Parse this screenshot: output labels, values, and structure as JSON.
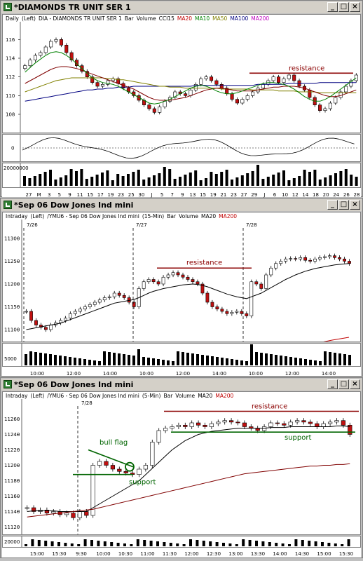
{
  "windows": [
    {
      "title": "*DIAMONDS TR UNIT SER 1",
      "header": [
        "Daily",
        "(Left)",
        "DIA - DIAMONDS TR UNIT SER 1",
        "Bar",
        "Volume",
        "CCI15"
      ],
      "header_colored": [
        {
          "text": "MA20",
          "color": "#c00000"
        },
        {
          "text": "MA10",
          "color": "#008000"
        },
        {
          "text": "MA50",
          "color": "#808000"
        },
        {
          "text": "MA100",
          "color": "#000080"
        },
        {
          "text": "MA200",
          "color": "#c000c0"
        }
      ],
      "price_ticks": [
        "116",
        "114",
        "112",
        "110",
        "108"
      ],
      "x_ticks": [
        "27",
        "M",
        "3",
        "5",
        "9",
        "11",
        "15",
        "17",
        "19",
        "23",
        "25",
        "30",
        "J",
        "5",
        "7",
        "9",
        "13",
        "15",
        "19",
        "21",
        "23",
        "27",
        "29",
        "J",
        "6",
        "10",
        "12",
        "14",
        "18",
        "20",
        "24",
        "26",
        "28"
      ],
      "cci_tick": "0",
      "volume_tick": "20000000",
      "annotation": "resistance"
    },
    {
      "title": "*Sep 06  Dow Jones Ind mini",
      "header": [
        "Intraday",
        "(Left)",
        "/YMU6 - Sep 06  Dow Jones Ind mini",
        "(15-Min)",
        "Bar",
        "Volume",
        "MA20"
      ],
      "header_colored": [
        {
          "text": "MA200",
          "color": "#c00000"
        }
      ],
      "date_marks": [
        "7/26",
        "7/27",
        "7/28"
      ],
      "price_ticks": [
        "11300",
        "11250",
        "11200",
        "11150",
        "11100"
      ],
      "volume_tick": "5000",
      "x_ticks": [
        "10:00",
        "12:00",
        "14:00",
        "10:00",
        "12:00",
        "14:00",
        "10:00",
        "12:00",
        "14:00"
      ],
      "annotation": "resistance"
    },
    {
      "title": "*Sep 06  Dow Jones Ind mini",
      "header": [
        "Intraday",
        "(Left)",
        "/YMU6 - Sep 06  Dow Jones Ind mini",
        "(5-Min)",
        "Bar",
        "Volume",
        "MA20"
      ],
      "header_colored": [
        {
          "text": "MA200",
          "color": "#c00000"
        }
      ],
      "date_marks": [
        "7/28"
      ],
      "price_ticks": [
        "11260",
        "11240",
        "11220",
        "11200",
        "11180",
        "11160",
        "11140",
        "11120"
      ],
      "volume_tick": "20000",
      "x_ticks": [
        "15:00",
        "15:30",
        "9:30",
        "10:00",
        "10:30",
        "11:00",
        "11:30",
        "12:00",
        "12:30",
        "13:00",
        "13:30",
        "14:00",
        "14:30",
        "15:00",
        "15:30"
      ],
      "annotations": {
        "resistance": "resistance",
        "support1": "support",
        "support2": "support",
        "flag": "bull flag"
      }
    }
  ],
  "window_buttons": {
    "min": "_",
    "max": "□",
    "close": "×"
  },
  "colors": {
    "up": "#ffffff",
    "down": "#c01010",
    "green": "#008000",
    "resistance": "#8b0000",
    "support": "#006400"
  },
  "chart_data": [
    {
      "type": "candlestick",
      "title": "*DIAMONDS TR UNIT SER 1",
      "ylim": [
        106.5,
        117
      ],
      "close": [
        113.2,
        113.8,
        114.3,
        114.6,
        115.2,
        115.8,
        116.0,
        115.4,
        114.6,
        113.8,
        113.2,
        112.6,
        112.0,
        111.4,
        111.0,
        111.2,
        111.6,
        111.8,
        111.3,
        110.8,
        110.4,
        110.0,
        109.5,
        109.0,
        108.6,
        108.2,
        108.8,
        109.4,
        109.8,
        110.4,
        110.2,
        110.0,
        110.6,
        111.2,
        111.8,
        112.0,
        111.6,
        111.2,
        110.8,
        110.2,
        109.6,
        109.2,
        109.6,
        110.0,
        110.4,
        110.8,
        111.2,
        111.6,
        112.0,
        111.4,
        111.8,
        112.2,
        111.6,
        111.0,
        110.6,
        109.8,
        109.0,
        108.4,
        108.6,
        109.2,
        109.8,
        110.4,
        111.0,
        111.6,
        112.2
      ],
      "ma20": [
        111.3,
        111.6,
        111.9,
        112.2,
        112.5,
        112.8,
        113.0,
        113.1,
        113.1,
        113.0,
        112.9,
        112.7,
        112.5,
        112.3,
        112.1,
        111.9,
        111.7,
        111.5,
        111.3,
        111.1,
        110.9,
        110.7,
        110.4,
        110.1,
        109.8,
        109.6,
        109.5,
        109.5,
        109.5,
        109.6,
        109.7,
        109.8,
        110.0,
        110.2,
        110.4,
        110.6,
        110.7,
        110.8,
        110.8,
        110.7,
        110.6,
        110.5,
        110.5,
        110.5,
        110.5,
        110.6,
        110.7,
        110.8,
        110.9,
        110.9,
        111.0,
        111.0,
        111.0,
        110.9,
        110.8,
        110.6,
        110.4,
        110.2,
        110.0,
        109.9,
        109.9,
        110.0,
        110.2,
        110.4,
        110.6
      ],
      "ma10": [
        112.5,
        113.0,
        113.5,
        113.9,
        114.3,
        114.6,
        114.7,
        114.6,
        114.3,
        113.9,
        113.4,
        112.9,
        112.4,
        111.9,
        111.6,
        111.4,
        111.3,
        111.2,
        111.0,
        110.7,
        110.4,
        110.1,
        109.8,
        109.5,
        109.2,
        109.1,
        109.2,
        109.4,
        109.6,
        109.9,
        110.2,
        110.5,
        110.8,
        111.0,
        111.1,
        111.0,
        110.8,
        110.5,
        110.3,
        110.2,
        110.2,
        110.3,
        110.5,
        110.7,
        110.9,
        111.1,
        111.3,
        111.4,
        111.4,
        111.3,
        111.2,
        111.0,
        110.7,
        110.3,
        109.9,
        109.6,
        109.4,
        109.4,
        109.6,
        109.9,
        110.3,
        110.7,
        111.1,
        111.5,
        111.9
      ],
      "ma50": [
        110.4,
        110.6,
        110.8,
        111.0,
        111.2,
        111.4,
        111.6,
        111.7,
        111.8,
        111.9,
        111.9,
        111.9,
        111.9,
        111.9,
        111.9,
        111.9,
        111.8,
        111.8,
        111.7,
        111.7,
        111.6,
        111.5,
        111.4,
        111.3,
        111.2,
        111.1,
        111.0,
        111.0,
        110.9,
        110.9,
        110.9,
        110.8,
        110.8,
        110.8,
        110.8,
        110.8,
        110.8,
        110.8,
        110.7,
        110.7,
        110.7,
        110.7,
        110.7,
        110.7,
        110.6,
        110.6,
        110.6,
        110.6,
        110.6,
        110.5,
        110.5,
        110.5,
        110.5,
        110.4,
        110.4,
        110.4,
        110.4,
        110.3,
        110.3,
        110.3,
        110.3,
        110.3,
        110.3,
        110.3,
        110.3
      ],
      "ma100": [
        109.4,
        109.5,
        109.6,
        109.7,
        109.8,
        109.9,
        110.0,
        110.1,
        110.2,
        110.3,
        110.4,
        110.5,
        110.6,
        110.6,
        110.7,
        110.7,
        110.8,
        110.8,
        110.9,
        110.9,
        110.9,
        111.0,
        111.0,
        111.0,
        111.0,
        111.0,
        111.0,
        111.0,
        111.0,
        111.0,
        111.0,
        111.0,
        111.0,
        111.1,
        111.1,
        111.1,
        111.1,
        111.1,
        111.1,
        111.1,
        111.1,
        111.1,
        111.1,
        111.1,
        111.1,
        111.2,
        111.2,
        111.2,
        111.2,
        111.2,
        111.2,
        111.3,
        111.3,
        111.3,
        111.3,
        111.3,
        111.3,
        111.4,
        111.4,
        111.4,
        111.4,
        111.4,
        111.4,
        111.4,
        111.4
      ],
      "resistance": 112.4
    },
    {
      "type": "candlestick",
      "title": "*Sep 06  Dow Jones Ind mini (15-Min)",
      "ylim": [
        11080,
        11320
      ],
      "close": [
        11140,
        11120,
        11110,
        11105,
        11100,
        11110,
        11115,
        11120,
        11125,
        11135,
        11140,
        11145,
        11150,
        11155,
        11160,
        11165,
        11170,
        11172,
        11180,
        11175,
        11170,
        11160,
        11150,
        11190,
        11205,
        11210,
        11205,
        11200,
        11215,
        11220,
        11225,
        11220,
        11215,
        11210,
        11205,
        11200,
        11180,
        11160,
        11150,
        11145,
        11140,
        11135,
        11138,
        11140,
        11135,
        11130,
        11205,
        11200,
        11190,
        11220,
        11235,
        11245,
        11250,
        11255,
        11256,
        11255,
        11258,
        11252,
        11250,
        11255,
        11258,
        11260,
        11262,
        11258,
        11255,
        11250,
        11245
      ],
      "ma20": [
        11100,
        11102,
        11104,
        11106,
        11108,
        11110,
        11112,
        11114,
        11118,
        11122,
        11126,
        11130,
        11134,
        11138,
        11142,
        11146,
        11150,
        11154,
        11158,
        11160,
        11162,
        11164,
        11166,
        11170,
        11175,
        11180,
        11184,
        11187,
        11190,
        11192,
        11194,
        11196,
        11198,
        11199,
        11200,
        11199,
        11197,
        11194,
        11190,
        11186,
        11182,
        11178,
        11175,
        11172,
        11170,
        11168,
        11172,
        11176,
        11180,
        11186,
        11192,
        11198,
        11204,
        11210,
        11215,
        11220,
        11224,
        11228,
        11231,
        11234,
        11236,
        11238,
        11240,
        11242,
        11243,
        11244,
        11245
      ],
      "resistance": 11235
    },
    {
      "type": "candlestick",
      "title": "*Sep 06  Dow Jones Ind mini (5-Min)",
      "ylim": [
        11115,
        11275
      ],
      "close": [
        11145,
        11140,
        11142,
        11138,
        11140,
        11136,
        11138,
        11132,
        11140,
        11135,
        11200,
        11205,
        11200,
        11195,
        11192,
        11190,
        11188,
        11195,
        11200,
        11230,
        11245,
        11248,
        11250,
        11252,
        11250,
        11255,
        11252,
        11250,
        11254,
        11256,
        11258,
        11256,
        11255,
        11250,
        11248,
        11245,
        11250,
        11255,
        11254,
        11252,
        11256,
        11258,
        11256,
        11254,
        11250,
        11254,
        11256,
        11258,
        11252,
        11240
      ],
      "ma20": [
        11140,
        11141,
        11141,
        11141,
        11141,
        11140,
        11140,
        11140,
        11140,
        11140,
        11145,
        11150,
        11155,
        11160,
        11165,
        11170,
        11175,
        11180,
        11188,
        11196,
        11204,
        11212,
        11220,
        11226,
        11232,
        11236,
        11240,
        11242,
        11244,
        11245,
        11246,
        11247,
        11248,
        11248,
        11248,
        11248,
        11248,
        11249,
        11249,
        11249,
        11250,
        11250,
        11250,
        11250,
        11250,
        11250,
        11250,
        11251,
        11251,
        11250
      ],
      "ma200": [
        11133,
        11134,
        11135,
        11136,
        11137,
        11138,
        11139,
        11140,
        11141,
        11142,
        11143,
        11145,
        11147,
        11149,
        11151,
        11153,
        11155,
        11157,
        11159,
        11161,
        11163,
        11165,
        11167,
        11169,
        11171,
        11173,
        11175,
        11177,
        11179,
        11181,
        11183,
        11185,
        11187,
        11189,
        11190,
        11191,
        11192,
        11193,
        11194,
        11195,
        11196,
        11197,
        11198,
        11199,
        11199,
        11200,
        11200,
        11201,
        11201,
        11202
      ],
      "resistance": 11270,
      "support": 11243,
      "flag_support": 11188
    }
  ]
}
